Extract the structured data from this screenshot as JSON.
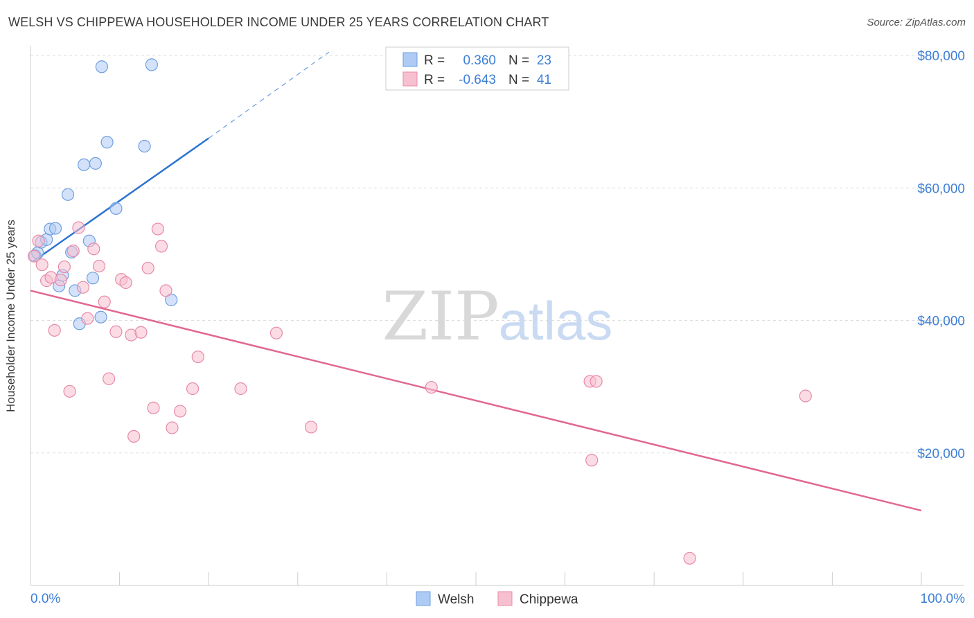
{
  "title": "WELSH VS CHIPPEWA HOUSEHOLDER INCOME UNDER 25 YEARS CORRELATION CHART",
  "source": "Source: ZipAtlas.com",
  "watermark": {
    "zip": "ZIP",
    "atlas": "atlas"
  },
  "legend_box": {
    "rows": [
      {
        "r_label": "R =",
        "r_value": "0.360",
        "n_label": "N =",
        "n_value": "23"
      },
      {
        "r_label": "R =",
        "r_value": "-0.643",
        "n_label": "N =",
        "n_value": "41"
      }
    ]
  },
  "colors": {
    "welsh_fill": "#aecbf5",
    "welsh_stroke": "#6f9fdd",
    "welsh_line": "#2b74d0",
    "chippewa_fill": "#f7c0d0",
    "chippewa_stroke": "#e78aa8",
    "chippewa_line": "#e26792",
    "tick_label": "#3d7fd6",
    "grid": "#dddddd",
    "axis": "#cccccc"
  },
  "chart_data": {
    "type": "scatter",
    "title": "WELSH VS CHIPPEWA HOUSEHOLDER INCOME UNDER 25 YEARS CORRELATION CHART",
    "xlabel": "",
    "ylabel": "Householder Income Under 25 years",
    "xlim": [
      0,
      100
    ],
    "ylim": [
      0,
      80000
    ],
    "x_tick_labels": [
      "0.0%",
      "100.0%"
    ],
    "y_ticks": [
      20000,
      40000,
      60000,
      80000
    ],
    "y_tick_labels": [
      "$20,000",
      "$40,000",
      "$60,000",
      "$80,000"
    ],
    "grid": true,
    "legend_position": "bottom-center",
    "series": [
      {
        "name": "Welsh",
        "r": 0.36,
        "n": 23,
        "trend": {
          "x": [
            0.3,
            20
          ],
          "y": [
            48900,
            67500
          ],
          "dashed_to": {
            "x": 33.5,
            "y": 80500
          }
        },
        "points": [
          [
            0.5,
            49800
          ],
          [
            0.8,
            50200
          ],
          [
            1.2,
            51800
          ],
          [
            1.8,
            52200
          ],
          [
            2.2,
            53800
          ],
          [
            2.8,
            53900
          ],
          [
            3.2,
            45200
          ],
          [
            3.6,
            46800
          ],
          [
            4.2,
            59000
          ],
          [
            4.6,
            50300
          ],
          [
            5.0,
            44500
          ],
          [
            5.5,
            39500
          ],
          [
            6.0,
            63500
          ],
          [
            7.3,
            63700
          ],
          [
            6.6,
            52000
          ],
          [
            7.0,
            46400
          ],
          [
            7.9,
            40500
          ],
          [
            8.0,
            78300
          ],
          [
            8.6,
            66900
          ],
          [
            9.6,
            56900
          ],
          [
            12.8,
            66300
          ],
          [
            13.6,
            78600
          ],
          [
            15.8,
            43100
          ]
        ]
      },
      {
        "name": "Chippewa",
        "r": -0.643,
        "n": 41,
        "trend": {
          "x": [
            0,
            100
          ],
          "y": [
            44500,
            11300
          ]
        },
        "points": [
          [
            0.4,
            49700
          ],
          [
            0.9,
            52000
          ],
          [
            1.3,
            48400
          ],
          [
            1.8,
            46000
          ],
          [
            2.3,
            46500
          ],
          [
            2.7,
            38500
          ],
          [
            3.4,
            46100
          ],
          [
            3.8,
            48100
          ],
          [
            4.4,
            29300
          ],
          [
            4.8,
            50500
          ],
          [
            5.4,
            54000
          ],
          [
            5.9,
            45000
          ],
          [
            6.4,
            40300
          ],
          [
            7.1,
            50800
          ],
          [
            7.7,
            48200
          ],
          [
            8.3,
            42800
          ],
          [
            8.8,
            31200
          ],
          [
            9.6,
            38300
          ],
          [
            10.2,
            46200
          ],
          [
            10.7,
            45700
          ],
          [
            11.3,
            37800
          ],
          [
            11.6,
            22500
          ],
          [
            12.4,
            38200
          ],
          [
            13.2,
            47900
          ],
          [
            13.8,
            26800
          ],
          [
            14.3,
            53800
          ],
          [
            14.7,
            51200
          ],
          [
            15.2,
            44500
          ],
          [
            15.9,
            23800
          ],
          [
            16.8,
            26300
          ],
          [
            18.2,
            29700
          ],
          [
            18.8,
            34500
          ],
          [
            23.6,
            29700
          ],
          [
            27.6,
            38100
          ],
          [
            31.5,
            23900
          ],
          [
            45.0,
            29900
          ],
          [
            62.8,
            30800
          ],
          [
            63.5,
            30800
          ],
          [
            63.0,
            18900
          ],
          [
            74.0,
            4100
          ],
          [
            87.0,
            28600
          ]
        ]
      }
    ]
  },
  "bottom_legend": {
    "items": [
      "Welsh",
      "Chippewa"
    ]
  }
}
